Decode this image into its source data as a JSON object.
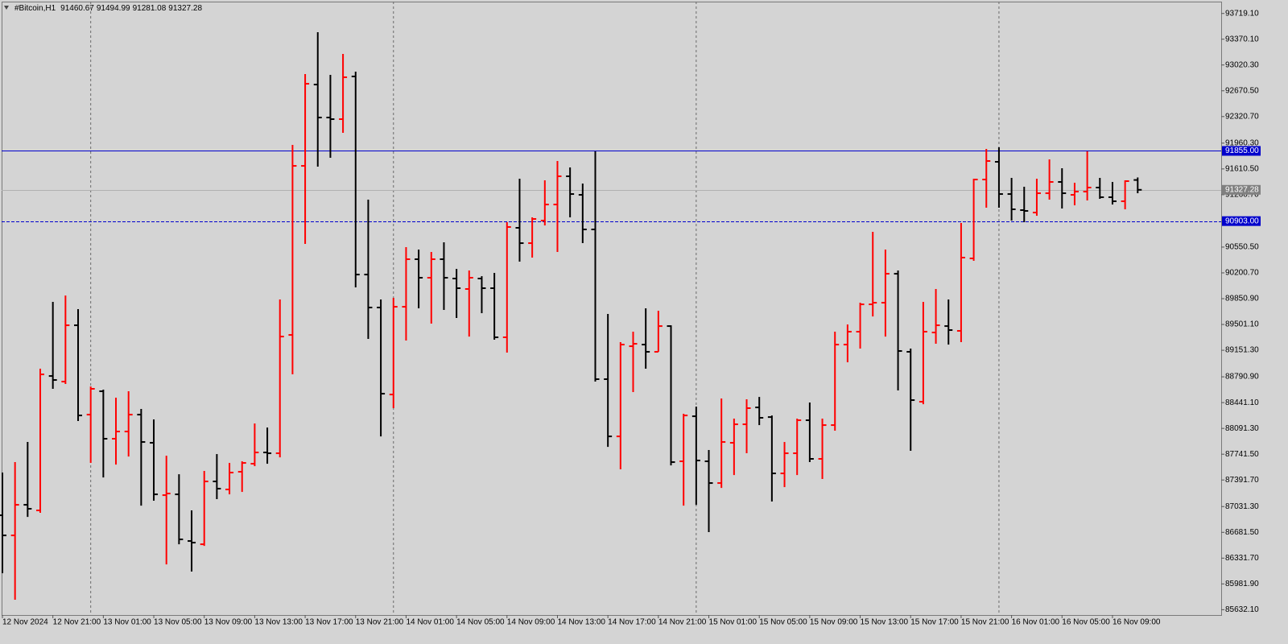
{
  "chart_data": {
    "type": "ohlc",
    "title": "#Bitcoin,H1",
    "categories": [
      "12 Nov 2024",
      null,
      null,
      null,
      "12 Nov 21:00",
      null,
      null,
      null,
      "13 Nov 01:00",
      null,
      null,
      null,
      "13 Nov 05:00",
      null,
      null,
      null,
      "13 Nov 09:00",
      null,
      null,
      null,
      "13 Nov 13:00",
      null,
      null,
      null,
      "13 Nov 17:00",
      null,
      null,
      null,
      "13 Nov 21:00",
      null,
      null,
      null,
      "14 Nov 01:00",
      null,
      null,
      null,
      "14 Nov 05:00",
      null,
      null,
      null,
      "14 Nov 09:00",
      null,
      null,
      null,
      "14 Nov 13:00",
      null,
      null,
      null,
      "14 Nov 17:00",
      null,
      null,
      null,
      "14 Nov 21:00",
      null,
      null,
      null,
      "15 Nov 01:00",
      null,
      null,
      null,
      "15 Nov 05:00",
      null,
      null,
      null,
      "15 Nov 09:00",
      null,
      null,
      null,
      "15 Nov 13:00",
      null,
      null,
      null,
      "15 Nov 17:00",
      null,
      null,
      null,
      "15 Nov 21:00",
      null,
      null,
      null,
      "16 Nov 01:00",
      null,
      null,
      null,
      "16 Nov 05:00",
      null,
      null,
      null,
      "16 Nov 09:00",
      null,
      null
    ],
    "open": [
      86913,
      86640,
      87055,
      86979,
      88802,
      88726,
      89490,
      88278,
      88595,
      87951,
      88049,
      88278,
      87896,
      87186,
      87197,
      86564,
      86520,
      87372,
      87263,
      87503,
      87612,
      87765,
      87754,
      89359,
      91652,
      92755,
      92308,
      92286,
      92865,
      90178,
      89731,
      88551,
      89741,
      90386,
      90135,
      90386,
      90124,
      89982,
      90124,
      89993,
      89327,
      90812,
      90604,
      90910,
      91128,
      91511,
      91259,
      90790,
      88759,
      87983,
      89206,
      89228,
      89130,
      89479,
      87645,
      88256,
      87645,
      87350,
      87896,
      88147,
      88376,
      88245,
      87481,
      87754,
      88202,
      87678,
      88136,
      89228,
      89403,
      89774,
      89796,
      90189,
      89130,
      88453,
      89392,
      89479,
      89414,
      90397,
      91467,
      91707,
      91270,
      91052,
      91019,
      91281,
      91434,
      91259,
      91303,
      91358,
      91227,
      91172,
      91460.67
    ],
    "high": [
      87492,
      87634,
      87907,
      88901,
      89807,
      89894,
      89709,
      88660,
      88617,
      88508,
      88595,
      88355,
      88213,
      87721,
      87470,
      86979,
      87514,
      87743,
      87623,
      87645,
      88158,
      88103,
      89840,
      91936,
      92897,
      93465,
      92886,
      93170,
      92930,
      91194,
      89840,
      89862,
      90550,
      90517,
      90484,
      90615,
      90255,
      90233,
      90156,
      90200,
      90888,
      91478,
      90954,
      91456,
      91718,
      91631,
      91412,
      91849,
      89643,
      89261,
      89403,
      89720,
      89687,
      89490,
      88289,
      88387,
      87798,
      88497,
      88224,
      88486,
      88518,
      88267,
      87907,
      88224,
      88442,
      88224,
      89403,
      89501,
      89796,
      90757,
      90517,
      90233,
      89174,
      89807,
      89982,
      89840,
      90877,
      91478,
      91882,
      91904,
      91489,
      91369,
      91478,
      91740,
      91620,
      91423,
      91849,
      91489,
      91434,
      91456,
      91494.99
    ],
    "low": [
      86127,
      85767,
      86891,
      86946,
      88628,
      88693,
      88191,
      87623,
      87426,
      87601,
      87710,
      87044,
      87110,
      86247,
      86520,
      86149,
      86498,
      87132,
      87197,
      87230,
      87579,
      87612,
      87699,
      88824,
      90593,
      91642,
      91762,
      92100,
      90004,
      89305,
      87983,
      88366,
      89283,
      89720,
      89512,
      89698,
      89589,
      89337,
      89654,
      89294,
      89119,
      90353,
      90408,
      90844,
      90484,
      90954,
      90604,
      88726,
      87841,
      87536,
      88584,
      88901,
      89130,
      87590,
      87044,
      87055,
      86684,
      87284,
      87459,
      87754,
      88136,
      87099,
      87295,
      87459,
      87634,
      87405,
      88060,
      88988,
      89174,
      89610,
      89337,
      88606,
      87787,
      88420,
      89239,
      89228,
      89261,
      90364,
      91085,
      91085,
      90910,
      90888,
      90975,
      91194,
      91074,
      91117,
      91183,
      91205,
      91128,
      91063,
      91281.08
    ],
    "close": [
      86640,
      87055,
      87001,
      88824,
      88748,
      89490,
      88267,
      88628,
      87951,
      88049,
      88278,
      87907,
      87197,
      87208,
      86586,
      86542,
      87372,
      87274,
      87492,
      87623,
      87765,
      87754,
      89337,
      91652,
      92766,
      92308,
      92286,
      92854,
      90178,
      89731,
      88562,
      89741,
      90386,
      90135,
      90386,
      90135,
      89993,
      90135,
      89993,
      89327,
      90823,
      90604,
      90932,
      91128,
      91511,
      91270,
      90790,
      88759,
      87983,
      89228,
      89239,
      89130,
      89479,
      87634,
      88267,
      87656,
      87350,
      87907,
      88147,
      88366,
      88235,
      87481,
      87754,
      88202,
      87678,
      88136,
      89228,
      89403,
      89774,
      89796,
      90189,
      89141,
      88475,
      89403,
      89490,
      89425,
      90408,
      91467,
      91718,
      91270,
      91063,
      91041,
      91281,
      91434,
      91281,
      91303,
      91358,
      91227,
      91172,
      91445,
      91327.28
    ],
    "up_color": "#ff0000",
    "down_color": "#000000",
    "ylim": [
      85560,
      93880
    ],
    "yticks": [
      {
        "value": 93719.1,
        "label": "93719.10"
      },
      {
        "value": 93370.1,
        "label": "93370.10"
      },
      {
        "value": 93020.3,
        "label": "93020.30"
      },
      {
        "value": 92670.5,
        "label": "92670.50"
      },
      {
        "value": 92320.7,
        "label": "92320.70"
      },
      {
        "value": 91960.3,
        "label": "91960.30"
      },
      {
        "value": 91610.5,
        "label": "91610.50"
      },
      {
        "value": 91260.7,
        "label": "91260.70"
      },
      {
        "value": 90550.5,
        "label": "90550.50"
      },
      {
        "value": 90200.7,
        "label": "90200.70"
      },
      {
        "value": 89850.9,
        "label": "89850.90"
      },
      {
        "value": 89501.1,
        "label": "89501.10"
      },
      {
        "value": 89151.3,
        "label": "89151.30"
      },
      {
        "value": 88790.9,
        "label": "88790.90"
      },
      {
        "value": 88441.1,
        "label": "88441.10"
      },
      {
        "value": 88091.3,
        "label": "88091.30"
      },
      {
        "value": 87741.5,
        "label": "87741.50"
      },
      {
        "value": 87391.7,
        "label": "87391.70"
      },
      {
        "value": 87031.3,
        "label": "87031.30"
      },
      {
        "value": 86681.5,
        "label": "86681.50"
      },
      {
        "value": 86331.7,
        "label": "86331.70"
      },
      {
        "value": 85981.9,
        "label": "85981.90"
      },
      {
        "value": 85632.1,
        "label": "85632.10"
      }
    ],
    "levels": [
      {
        "value": 91855,
        "label": "91855.00",
        "color": "#0000cc",
        "style": "solid"
      },
      {
        "value": 90903,
        "label": "90903.00",
        "color": "#0000cc",
        "style": "dashed"
      }
    ],
    "bid_color": "#808080",
    "period_separators": true
  }
}
